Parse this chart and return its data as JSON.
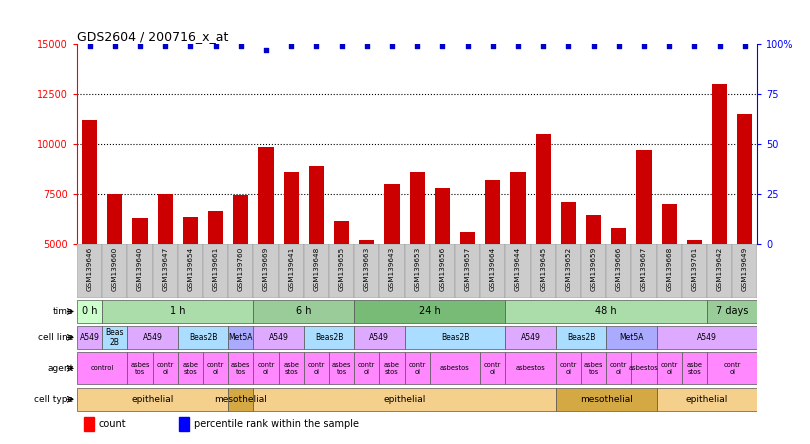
{
  "title": "GDS2604 / 200716_x_at",
  "samples": [
    "GSM139646",
    "GSM139660",
    "GSM139640",
    "GSM139647",
    "GSM139654",
    "GSM139661",
    "GSM139760",
    "GSM139669",
    "GSM139641",
    "GSM139648",
    "GSM139655",
    "GSM139663",
    "GSM139643",
    "GSM139653",
    "GSM139656",
    "GSM139657",
    "GSM139664",
    "GSM139644",
    "GSM139645",
    "GSM139652",
    "GSM139659",
    "GSM139666",
    "GSM139667",
    "GSM139668",
    "GSM139761",
    "GSM139642",
    "GSM139649"
  ],
  "counts": [
    11200,
    7500,
    6300,
    7500,
    6350,
    6650,
    7450,
    9820,
    8600,
    8900,
    6150,
    5200,
    8000,
    8600,
    7800,
    5600,
    8200,
    8600,
    10500,
    7100,
    6450,
    5800,
    9700,
    7000,
    5200,
    13000,
    11500
  ],
  "percentile_ranks": [
    99,
    99,
    99,
    99,
    99,
    99,
    99,
    97,
    99,
    99,
    99,
    99,
    99,
    99,
    99,
    99,
    99,
    99,
    99,
    99,
    99,
    99,
    99,
    99,
    99,
    99,
    99
  ],
  "ylim_left": [
    5000,
    15000
  ],
  "ylim_right": [
    0,
    100
  ],
  "yticks_left": [
    5000,
    7500,
    10000,
    12500,
    15000
  ],
  "yticks_right": [
    0,
    25,
    50,
    75,
    100
  ],
  "bar_color": "#cc0000",
  "dot_color": "#0000cc",
  "time_row": {
    "label": "time",
    "segments": [
      {
        "text": "0 h",
        "start": 0,
        "end": 1,
        "color": "#ccffcc"
      },
      {
        "text": "1 h",
        "start": 1,
        "end": 7,
        "color": "#aaddaa"
      },
      {
        "text": "6 h",
        "start": 7,
        "end": 11,
        "color": "#99cc99"
      },
      {
        "text": "24 h",
        "start": 11,
        "end": 17,
        "color": "#77bb77"
      },
      {
        "text": "48 h",
        "start": 17,
        "end": 25,
        "color": "#aaddaa"
      },
      {
        "text": "7 days",
        "start": 25,
        "end": 27,
        "color": "#99cc99"
      }
    ]
  },
  "cell_line_row": {
    "label": "cell line",
    "segments": [
      {
        "text": "A549",
        "start": 0,
        "end": 1,
        "color": "#ddaaff"
      },
      {
        "text": "Beas\n2B",
        "start": 1,
        "end": 2,
        "color": "#aaddff"
      },
      {
        "text": "A549",
        "start": 2,
        "end": 4,
        "color": "#ddaaff"
      },
      {
        "text": "Beas2B",
        "start": 4,
        "end": 6,
        "color": "#aaddff"
      },
      {
        "text": "Met5A",
        "start": 6,
        "end": 7,
        "color": "#aaaaff"
      },
      {
        "text": "A549",
        "start": 7,
        "end": 9,
        "color": "#ddaaff"
      },
      {
        "text": "Beas2B",
        "start": 9,
        "end": 11,
        "color": "#aaddff"
      },
      {
        "text": "A549",
        "start": 11,
        "end": 13,
        "color": "#ddaaff"
      },
      {
        "text": "Beas2B",
        "start": 13,
        "end": 17,
        "color": "#aaddff"
      },
      {
        "text": "A549",
        "start": 17,
        "end": 19,
        "color": "#ddaaff"
      },
      {
        "text": "Beas2B",
        "start": 19,
        "end": 21,
        "color": "#aaddff"
      },
      {
        "text": "Met5A",
        "start": 21,
        "end": 23,
        "color": "#aaaaff"
      },
      {
        "text": "A549",
        "start": 23,
        "end": 27,
        "color": "#ddaaff"
      }
    ]
  },
  "agent_row": {
    "label": "agent",
    "segments": [
      {
        "text": "control",
        "start": 0,
        "end": 2,
        "color": "#ff88ff"
      },
      {
        "text": "asbes\ntos",
        "start": 2,
        "end": 3,
        "color": "#ff88ff"
      },
      {
        "text": "contr\nol",
        "start": 3,
        "end": 4,
        "color": "#ff88ff"
      },
      {
        "text": "asbe\nstos",
        "start": 4,
        "end": 5,
        "color": "#ff88ff"
      },
      {
        "text": "contr\nol",
        "start": 5,
        "end": 6,
        "color": "#ff88ff"
      },
      {
        "text": "asbes\ntos",
        "start": 6,
        "end": 7,
        "color": "#ff88ff"
      },
      {
        "text": "contr\nol",
        "start": 7,
        "end": 8,
        "color": "#ff88ff"
      },
      {
        "text": "asbe\nstos",
        "start": 8,
        "end": 9,
        "color": "#ff88ff"
      },
      {
        "text": "contr\nol",
        "start": 9,
        "end": 10,
        "color": "#ff88ff"
      },
      {
        "text": "asbes\ntos",
        "start": 10,
        "end": 11,
        "color": "#ff88ff"
      },
      {
        "text": "contr\nol",
        "start": 11,
        "end": 12,
        "color": "#ff88ff"
      },
      {
        "text": "asbe\nstos",
        "start": 12,
        "end": 13,
        "color": "#ff88ff"
      },
      {
        "text": "contr\nol",
        "start": 13,
        "end": 14,
        "color": "#ff88ff"
      },
      {
        "text": "asbestos",
        "start": 14,
        "end": 16,
        "color": "#ff88ff"
      },
      {
        "text": "contr\nol",
        "start": 16,
        "end": 17,
        "color": "#ff88ff"
      },
      {
        "text": "asbestos",
        "start": 17,
        "end": 19,
        "color": "#ff88ff"
      },
      {
        "text": "contr\nol",
        "start": 19,
        "end": 20,
        "color": "#ff88ff"
      },
      {
        "text": "asbes\ntos",
        "start": 20,
        "end": 21,
        "color": "#ff88ff"
      },
      {
        "text": "contr\nol",
        "start": 21,
        "end": 22,
        "color": "#ff88ff"
      },
      {
        "text": "asbestos",
        "start": 22,
        "end": 23,
        "color": "#ff88ff"
      },
      {
        "text": "contr\nol",
        "start": 23,
        "end": 24,
        "color": "#ff88ff"
      },
      {
        "text": "asbe\nstos",
        "start": 24,
        "end": 25,
        "color": "#ff88ff"
      },
      {
        "text": "contr\nol",
        "start": 25,
        "end": 27,
        "color": "#ff88ff"
      }
    ]
  },
  "cell_type_row": {
    "label": "cell type",
    "segments": [
      {
        "text": "epithelial",
        "start": 0,
        "end": 6,
        "color": "#f5d08c"
      },
      {
        "text": "mesothelial",
        "start": 6,
        "end": 7,
        "color": "#d4a843"
      },
      {
        "text": "epithelial",
        "start": 7,
        "end": 19,
        "color": "#f5d08c"
      },
      {
        "text": "mesothelial",
        "start": 19,
        "end": 23,
        "color": "#d4a843"
      },
      {
        "text": "epithelial",
        "start": 23,
        "end": 27,
        "color": "#f5d08c"
      }
    ]
  }
}
